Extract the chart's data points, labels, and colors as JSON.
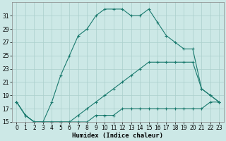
{
  "xlabel": "Humidex (Indice chaleur)",
  "background_color": "#cce8e6",
  "grid_color": "#aacfcc",
  "line_color": "#1a7a6e",
  "x": [
    0,
    1,
    2,
    3,
    4,
    5,
    6,
    7,
    8,
    9,
    10,
    11,
    12,
    13,
    14,
    15,
    16,
    17,
    18,
    19,
    20,
    21,
    22,
    23
  ],
  "line_top": [
    18,
    16,
    15,
    15,
    18,
    22,
    25,
    28,
    29,
    31,
    32,
    32,
    32,
    31,
    31,
    32,
    30,
    28,
    27,
    26,
    26,
    20,
    19,
    18
  ],
  "line_mid": [
    18,
    16,
    15,
    15,
    15,
    15,
    15,
    16,
    17,
    18,
    19,
    20,
    21,
    22,
    23,
    24,
    24,
    24,
    24,
    24,
    24,
    20,
    19,
    18
  ],
  "line_bot": [
    18,
    16,
    15,
    15,
    15,
    15,
    15,
    15,
    15,
    16,
    16,
    16,
    17,
    17,
    17,
    17,
    17,
    17,
    17,
    17,
    17,
    17,
    18,
    18
  ],
  "ylim": [
    15,
    33
  ],
  "xlim": [
    -0.5,
    23.5
  ],
  "yticks": [
    15,
    17,
    19,
    21,
    23,
    25,
    27,
    29,
    31
  ],
  "xticks": [
    0,
    1,
    2,
    3,
    4,
    5,
    6,
    7,
    8,
    9,
    10,
    11,
    12,
    13,
    14,
    15,
    16,
    17,
    18,
    19,
    20,
    21,
    22,
    23
  ],
  "tick_fontsize": 5.5,
  "xlabel_fontsize": 6.5,
  "linewidth": 0.8,
  "markersize": 3.0,
  "markeredgewidth": 0.8
}
